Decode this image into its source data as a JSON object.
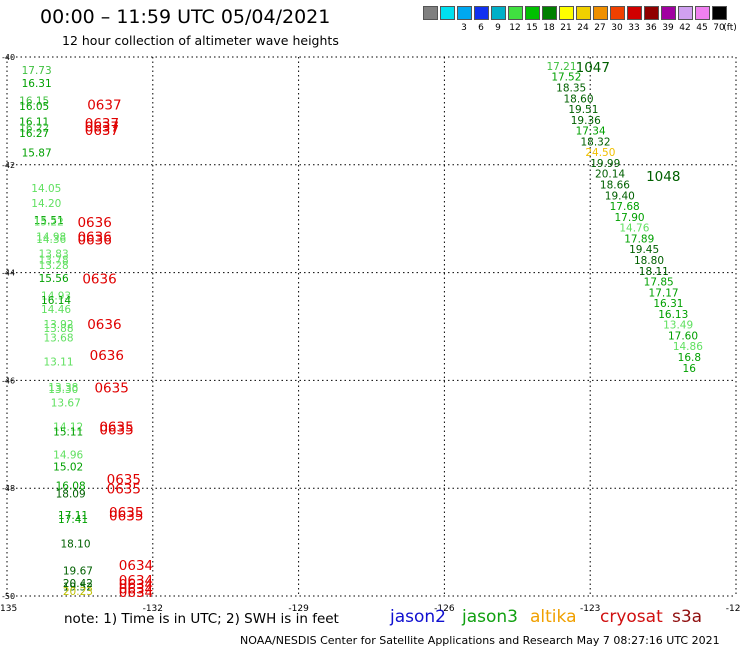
{
  "header": {
    "title": "00:00 – 11:59 UTC 05/04/2021",
    "subtitle": "12 hour collection of altimeter wave heights"
  },
  "legend": {
    "swatches": [
      {
        "color": "#808080",
        "label": ""
      },
      {
        "color": "#00e0f0",
        "label": "3"
      },
      {
        "color": "#00a8f0",
        "label": "6"
      },
      {
        "color": "#1030f0",
        "label": "9"
      },
      {
        "color": "#00b0c8",
        "label": "12"
      },
      {
        "color": "#40e040",
        "label": "15"
      },
      {
        "color": "#00c000",
        "label": "18"
      },
      {
        "color": "#008000",
        "label": "21"
      },
      {
        "color": "#ffff00",
        "label": "24"
      },
      {
        "color": "#f0d000",
        "label": "27"
      },
      {
        "color": "#f09000",
        "label": "30"
      },
      {
        "color": "#f04000",
        "label": "33"
      },
      {
        "color": "#d00000",
        "label": "36"
      },
      {
        "color": "#900000",
        "label": "39"
      },
      {
        "color": "#a000a0",
        "label": "42"
      },
      {
        "color": "#d0a0f0",
        "label": "45"
      },
      {
        "color": "#f080f0",
        "label": "70"
      },
      {
        "color": "#000000",
        "label": "(ft)"
      }
    ]
  },
  "footer": {
    "note": "note:  1) Time is in UTC;  2) SWH is in feet",
    "satellites": [
      {
        "name": "jason2",
        "color": "#1010d0"
      },
      {
        "name": "jason3",
        "color": "#10a010"
      },
      {
        "name": "altika",
        "color": "#f0a000"
      },
      {
        "name": "cryosat",
        "color": "#d01010"
      },
      {
        "name": "s3a",
        "color": "#901010"
      }
    ],
    "credit": "NOAA/NESDIS Center for Satellite Applications and Research    May  7 08:27:16 UTC 2021"
  },
  "chart_data": {
    "type": "scatter",
    "xlim": [
      -135,
      -120
    ],
    "ylim": [
      -50,
      -40
    ],
    "x_ticks": [
      "-135",
      "-132",
      "-129",
      "-126",
      "-123",
      "-120"
    ],
    "y_ticks": [
      "-40",
      "-42",
      "-44",
      "-46",
      "-48",
      "-50"
    ],
    "grid": true,
    "west_track": {
      "heights": [
        {
          "lon": -134.7,
          "lat": -40.32,
          "text": "17.73",
          "color": "#40c040"
        },
        {
          "lon": -134.7,
          "lat": -40.56,
          "text": "16.31",
          "color": "#00a000"
        },
        {
          "lon": -134.75,
          "lat": -40.88,
          "text": "16.15",
          "color": "#40c040"
        },
        {
          "lon": -134.75,
          "lat": -40.98,
          "text": "16.05",
          "color": "#00a000"
        },
        {
          "lon": -134.75,
          "lat": -41.27,
          "text": "16.11",
          "color": "#00a000"
        },
        {
          "lon": -134.75,
          "lat": -41.38,
          "text": "16.22",
          "color": "#40c040"
        },
        {
          "lon": -134.75,
          "lat": -41.48,
          "text": "16.27",
          "color": "#00a000"
        },
        {
          "lon": -134.7,
          "lat": -41.85,
          "text": "15.87",
          "color": "#00a000"
        },
        {
          "lon": -134.5,
          "lat": -42.5,
          "text": "14.05",
          "color": "#60e060"
        },
        {
          "lon": -134.5,
          "lat": -42.78,
          "text": "14.20",
          "color": "#60e060"
        },
        {
          "lon": -134.45,
          "lat": -43.1,
          "text": "15.51",
          "color": "#00a000"
        },
        {
          "lon": -134.45,
          "lat": -43.13,
          "text": "15.22",
          "color": "#60e060"
        },
        {
          "lon": -134.4,
          "lat": -43.4,
          "text": "14.98",
          "color": "#60e060"
        },
        {
          "lon": -134.4,
          "lat": -43.45,
          "text": "14.36",
          "color": "#60e060"
        },
        {
          "lon": -134.35,
          "lat": -43.72,
          "text": "13.83",
          "color": "#60e060"
        },
        {
          "lon": -134.35,
          "lat": -43.83,
          "text": "13.78",
          "color": "#60e060"
        },
        {
          "lon": -134.35,
          "lat": -43.93,
          "text": "13.28",
          "color": "#60e060"
        },
        {
          "lon": -134.35,
          "lat": -44.17,
          "text": "15.56",
          "color": "#00a000"
        },
        {
          "lon": -134.3,
          "lat": -44.5,
          "text": "14.93",
          "color": "#60e060"
        },
        {
          "lon": -134.3,
          "lat": -44.58,
          "text": "16.14",
          "color": "#00a000"
        },
        {
          "lon": -134.3,
          "lat": -44.75,
          "text": "14.46",
          "color": "#60e060"
        },
        {
          "lon": -134.25,
          "lat": -45.03,
          "text": "13.92",
          "color": "#60e060"
        },
        {
          "lon": -134.25,
          "lat": -45.1,
          "text": "13.88",
          "color": "#60e060"
        },
        {
          "lon": -134.25,
          "lat": -45.28,
          "text": "13.68",
          "color": "#60e060"
        },
        {
          "lon": -134.25,
          "lat": -45.72,
          "text": "13.11",
          "color": "#60e060"
        },
        {
          "lon": -134.15,
          "lat": -46.2,
          "text": "13.38",
          "color": "#60e060"
        },
        {
          "lon": -134.15,
          "lat": -46.23,
          "text": "13.30",
          "color": "#60e060"
        },
        {
          "lon": -134.1,
          "lat": -46.48,
          "text": "13.67",
          "color": "#60e060"
        },
        {
          "lon": -134.05,
          "lat": -46.93,
          "text": "14.12",
          "color": "#60e060"
        },
        {
          "lon": -134.05,
          "lat": -47.02,
          "text": "15.11",
          "color": "#00a000"
        },
        {
          "lon": -134.05,
          "lat": -47.45,
          "text": "14.96",
          "color": "#60e060"
        },
        {
          "lon": -134.05,
          "lat": -47.67,
          "text": "15.02",
          "color": "#00a000"
        },
        {
          "lon": -134.0,
          "lat": -48.02,
          "text": "16.08",
          "color": "#00a000"
        },
        {
          "lon": -134.0,
          "lat": -48.17,
          "text": "18.09",
          "color": "#006000"
        },
        {
          "lon": -133.95,
          "lat": -48.57,
          "text": "17.11",
          "color": "#00a000"
        },
        {
          "lon": -133.95,
          "lat": -48.65,
          "text": "17.41",
          "color": "#00a000"
        },
        {
          "lon": -133.9,
          "lat": -49.1,
          "text": "18.10",
          "color": "#006000"
        },
        {
          "lon": -133.85,
          "lat": -49.6,
          "text": "19.67",
          "color": "#006000"
        },
        {
          "lon": -133.85,
          "lat": -49.83,
          "text": "20.42",
          "color": "#006000"
        },
        {
          "lon": -133.85,
          "lat": -49.9,
          "text": "19.52",
          "color": "#006000"
        },
        {
          "lon": -133.85,
          "lat": -49.98,
          "text": "20.23",
          "color": "#c0c000"
        }
      ],
      "times": [
        {
          "lon": -133.35,
          "lat": -40.97,
          "text": "0637"
        },
        {
          "lon": -133.4,
          "lat": -41.32,
          "text": "0637"
        },
        {
          "lon": -133.4,
          "lat": -41.38,
          "text": "0637"
        },
        {
          "lon": -133.4,
          "lat": -41.45,
          "text": "0637"
        },
        {
          "lon": -133.55,
          "lat": -43.15,
          "text": "0636"
        },
        {
          "lon": -133.55,
          "lat": -43.42,
          "text": "0636"
        },
        {
          "lon": -133.55,
          "lat": -43.48,
          "text": "0636"
        },
        {
          "lon": -133.45,
          "lat": -44.2,
          "text": "0636"
        },
        {
          "lon": -133.35,
          "lat": -45.05,
          "text": "0636"
        },
        {
          "lon": -133.3,
          "lat": -45.62,
          "text": "0636"
        },
        {
          "lon": -133.2,
          "lat": -46.22,
          "text": "0635"
        },
        {
          "lon": -133.1,
          "lat": -46.95,
          "text": "0635"
        },
        {
          "lon": -133.1,
          "lat": -47.0,
          "text": "0635"
        },
        {
          "lon": -132.95,
          "lat": -47.92,
          "text": "0635"
        },
        {
          "lon": -132.95,
          "lat": -48.1,
          "text": "0635"
        },
        {
          "lon": -132.9,
          "lat": -48.53,
          "text": "0635"
        },
        {
          "lon": -132.9,
          "lat": -48.6,
          "text": "0635"
        },
        {
          "lon": -132.7,
          "lat": -49.52,
          "text": "0634"
        },
        {
          "lon": -132.7,
          "lat": -49.8,
          "text": "0634"
        },
        {
          "lon": -132.7,
          "lat": -49.87,
          "text": "0634"
        },
        {
          "lon": -132.7,
          "lat": -49.95,
          "text": "0634"
        },
        {
          "lon": -132.7,
          "lat": -50.02,
          "text": "0634"
        }
      ]
    },
    "east_track": {
      "heights": [
        {
          "lon": -123.9,
          "lat": -40.24,
          "text": "17.21",
          "color": "#40c040"
        },
        {
          "lon": -123.8,
          "lat": -40.44,
          "text": "17.52",
          "color": "#00a000"
        },
        {
          "lon": -123.7,
          "lat": -40.64,
          "text": "18.35",
          "color": "#006000"
        },
        {
          "lon": -123.55,
          "lat": -40.84,
          "text": "18.60",
          "color": "#006000"
        },
        {
          "lon": -123.45,
          "lat": -41.04,
          "text": "19.51",
          "color": "#006000"
        },
        {
          "lon": -123.4,
          "lat": -41.24,
          "text": "19.36",
          "color": "#006000"
        },
        {
          "lon": -123.3,
          "lat": -41.44,
          "text": "17.34",
          "color": "#00a000"
        },
        {
          "lon": -123.2,
          "lat": -41.64,
          "text": "18.32",
          "color": "#006000"
        },
        {
          "lon": -123.1,
          "lat": -41.84,
          "text": "24.50",
          "color": "#f0c000"
        },
        {
          "lon": -123.0,
          "lat": -42.04,
          "text": "19.99",
          "color": "#006000"
        },
        {
          "lon": -122.9,
          "lat": -42.24,
          "text": "20.14",
          "color": "#006000"
        },
        {
          "lon": -122.8,
          "lat": -42.44,
          "text": "18.66",
          "color": "#006000"
        },
        {
          "lon": -122.7,
          "lat": -42.64,
          "text": "19.40",
          "color": "#006000"
        },
        {
          "lon": -122.6,
          "lat": -42.84,
          "text": "17.68",
          "color": "#00a000"
        },
        {
          "lon": -122.5,
          "lat": -43.04,
          "text": "17.90",
          "color": "#00a000"
        },
        {
          "lon": -122.4,
          "lat": -43.24,
          "text": "14.76",
          "color": "#60e060"
        },
        {
          "lon": -122.3,
          "lat": -43.44,
          "text": "17.89",
          "color": "#00a000"
        },
        {
          "lon": -122.2,
          "lat": -43.64,
          "text": "19.45",
          "color": "#006000"
        },
        {
          "lon": -122.1,
          "lat": -43.84,
          "text": "18.80",
          "color": "#006000"
        },
        {
          "lon": -122.0,
          "lat": -44.04,
          "text": "18.11",
          "color": "#006000"
        },
        {
          "lon": -121.9,
          "lat": -44.24,
          "text": "17.85",
          "color": "#00a000"
        },
        {
          "lon": -121.8,
          "lat": -44.44,
          "text": "17.17",
          "color": "#00a000"
        },
        {
          "lon": -121.7,
          "lat": -44.64,
          "text": "16.31",
          "color": "#00a000"
        },
        {
          "lon": -121.6,
          "lat": -44.84,
          "text": "16.13",
          "color": "#00a000"
        },
        {
          "lon": -121.5,
          "lat": -45.04,
          "text": "13.49",
          "color": "#60e060"
        },
        {
          "lon": -121.4,
          "lat": -45.24,
          "text": "17.60",
          "color": "#00a000"
        },
        {
          "lon": -121.3,
          "lat": -45.44,
          "text": "14.86",
          "color": "#60e060"
        },
        {
          "lon": -121.2,
          "lat": -45.64,
          "text": "16.8",
          "color": "#00a000"
        },
        {
          "lon": -121.1,
          "lat": -45.84,
          "text": "16",
          "color": "#00a000"
        }
      ],
      "times": [
        {
          "lon": -123.3,
          "lat": -40.28,
          "text": "1047"
        },
        {
          "lon": -121.85,
          "lat": -42.3,
          "text": "1048"
        }
      ]
    }
  }
}
